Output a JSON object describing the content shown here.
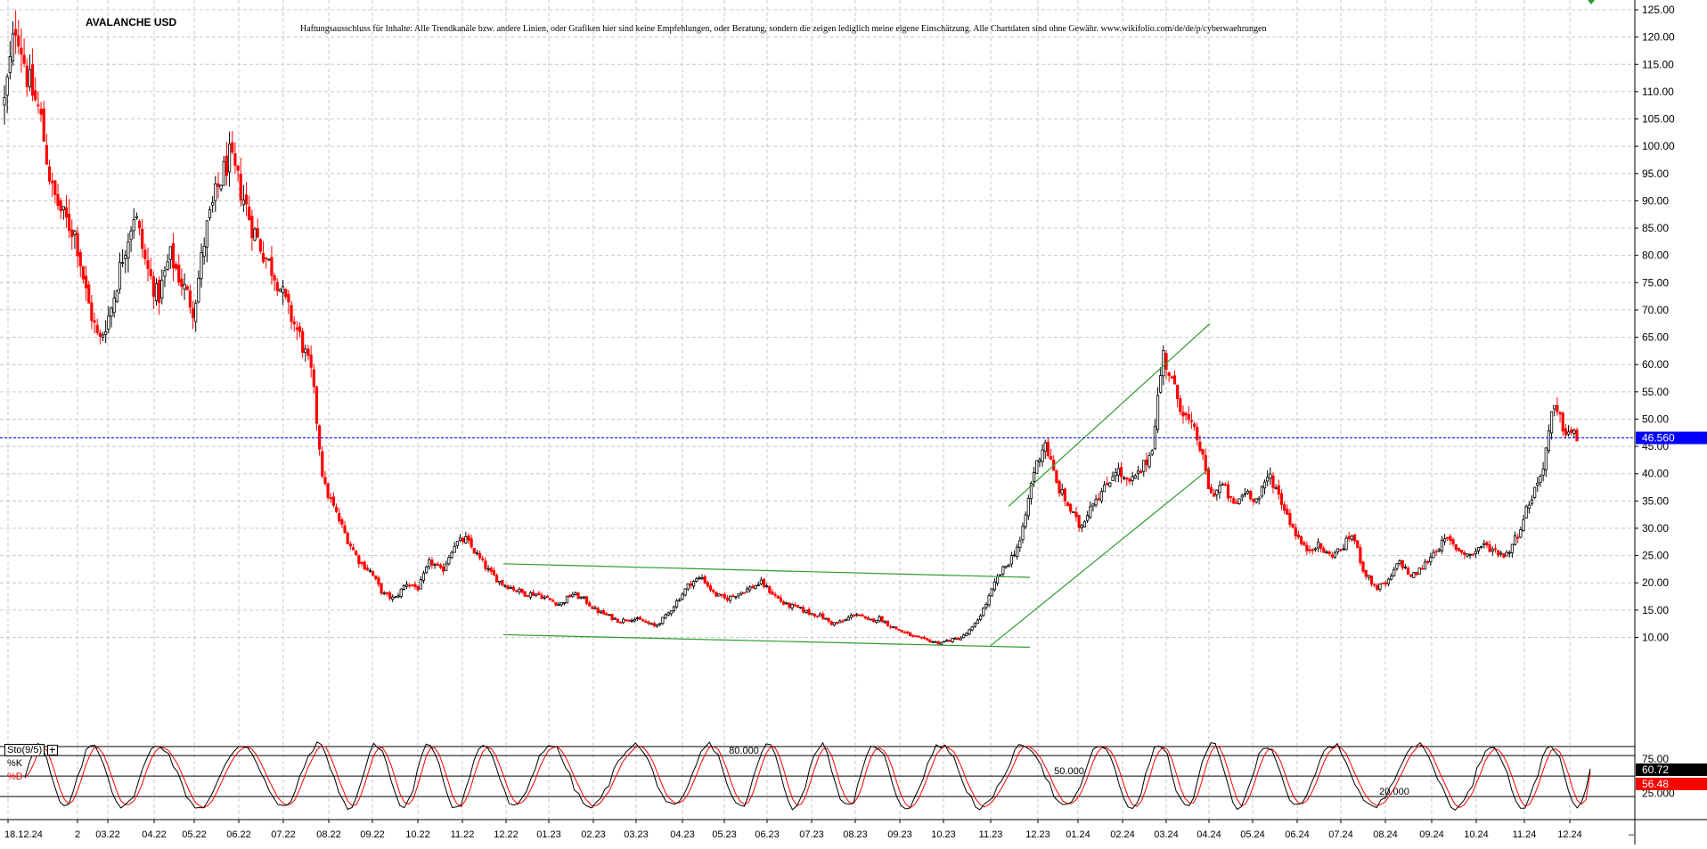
{
  "chart_data": [
    {
      "type": "candlestick",
      "title": "AVALANCHE USD",
      "annotation": "Haftungsausschluss für Inhalte: Alle Trendkanäle bzw. andere Linien, oder Grafiken hier sind keine Empfehlungen, oder Beratung, sondern die zeigen lediglich meine eigene Einschätzung. Alle Chartdaten sind ohne Gewähr.  www.wikifolio.com/de/de/p/cyberwaehrungen",
      "x_tick_labels": [
        "18.12.24",
        "2",
        "03.22",
        "04.22",
        "05.22",
        "06.22",
        "07.22",
        "08.22",
        "09.22",
        "10.22",
        "11.22",
        "12.22",
        "01.23",
        "02.23",
        "03.23",
        "04.23",
        "05.23",
        "06.23",
        "07.23",
        "08.23",
        "09.23",
        "10.23",
        "11.23",
        "12.23",
        "01.24",
        "02.24",
        "03.24",
        "04.24",
        "05.24",
        "06.24",
        "07.24",
        "08.24",
        "09.24",
        "10.24",
        "11.24",
        "12.24"
      ],
      "y_tick_labels": [
        "125.00",
        "120.00",
        "115.00",
        "110.00",
        "105.00",
        "100.00",
        "95.00",
        "90.00",
        "85.00",
        "80.00",
        "75.00",
        "70.00",
        "65.00",
        "60.00",
        "55.00",
        "50.00",
        "45.00",
        "40.00",
        "35.00",
        "30.00",
        "25.00",
        "20.00",
        "15.00",
        "10.00"
      ],
      "ylim": [
        6,
        126
      ],
      "grid": true,
      "price_path_anchors": [
        [
          0,
          108
        ],
        [
          1,
          123
        ],
        [
          2,
          112
        ],
        [
          3,
          106
        ],
        [
          4,
          92
        ],
        [
          5,
          87
        ],
        [
          6,
          84
        ],
        [
          7,
          72
        ],
        [
          8,
          64
        ],
        [
          9,
          70
        ],
        [
          10,
          80
        ],
        [
          11,
          88
        ],
        [
          12,
          78
        ],
        [
          13,
          72
        ],
        [
          14,
          80
        ],
        [
          15,
          75
        ],
        [
          16,
          70
        ],
        [
          17,
          84
        ],
        [
          18,
          92
        ],
        [
          19,
          98
        ],
        [
          20,
          92
        ],
        [
          21,
          85
        ],
        [
          22,
          80
        ],
        [
          23,
          76
        ],
        [
          24,
          70
        ],
        [
          25,
          65
        ],
        [
          26,
          58
        ],
        [
          27,
          38
        ],
        [
          28,
          33
        ],
        [
          29,
          28
        ],
        [
          30,
          24
        ],
        [
          31,
          22
        ],
        [
          32,
          18
        ],
        [
          33,
          17
        ],
        [
          34,
          20
        ],
        [
          35,
          19
        ],
        [
          36,
          24
        ],
        [
          37,
          22
        ],
        [
          38,
          27
        ],
        [
          39,
          28
        ],
        [
          40,
          25
        ],
        [
          41,
          22
        ],
        [
          42,
          20
        ],
        [
          43,
          19
        ],
        [
          44,
          18
        ],
        [
          45,
          18
        ],
        [
          46,
          17
        ],
        [
          47,
          16
        ],
        [
          48,
          18
        ],
        [
          49,
          17
        ],
        [
          50,
          15
        ],
        [
          51,
          14
        ],
        [
          52,
          13
        ],
        [
          53,
          13.5
        ],
        [
          54,
          13
        ],
        [
          55,
          12
        ],
        [
          56,
          14
        ],
        [
          57,
          17
        ],
        [
          58,
          20
        ],
        [
          59,
          21
        ],
        [
          60,
          18
        ],
        [
          61,
          17
        ],
        [
          62,
          18
        ],
        [
          63,
          19
        ],
        [
          64,
          20
        ],
        [
          65,
          18
        ],
        [
          66,
          16
        ],
        [
          67,
          15.5
        ],
        [
          68,
          14.5
        ],
        [
          69,
          14
        ],
        [
          70,
          12.5
        ],
        [
          71,
          13
        ],
        [
          72,
          14.5
        ],
        [
          73,
          13
        ],
        [
          74,
          13.5
        ],
        [
          75,
          12
        ],
        [
          76,
          11
        ],
        [
          77,
          10
        ],
        [
          78,
          9.5
        ],
        [
          79,
          9
        ],
        [
          80,
          9.5
        ],
        [
          81,
          10
        ],
        [
          82,
          12
        ],
        [
          83,
          16
        ],
        [
          84,
          21
        ],
        [
          85,
          24
        ],
        [
          86,
          28
        ],
        [
          87,
          40
        ],
        [
          88,
          46
        ],
        [
          89,
          38
        ],
        [
          90,
          34
        ],
        [
          91,
          30
        ],
        [
          92,
          35
        ],
        [
          93,
          37
        ],
        [
          94,
          41
        ],
        [
          95,
          38
        ],
        [
          96,
          40
        ],
        [
          97,
          44
        ],
        [
          98,
          62
        ],
        [
          99,
          55
        ],
        [
          100,
          50
        ],
        [
          101,
          46
        ],
        [
          102,
          36
        ],
        [
          103,
          38
        ],
        [
          104,
          34
        ],
        [
          105,
          37
        ],
        [
          106,
          35
        ],
        [
          107,
          40
        ],
        [
          108,
          35
        ],
        [
          109,
          30
        ],
        [
          110,
          26
        ],
        [
          111,
          27
        ],
        [
          112,
          25
        ],
        [
          113,
          26
        ],
        [
          114,
          29
        ],
        [
          115,
          22
        ],
        [
          116,
          19
        ],
        [
          117,
          20
        ],
        [
          118,
          24
        ],
        [
          119,
          21
        ],
        [
          120,
          23
        ],
        [
          121,
          26
        ],
        [
          122,
          28
        ],
        [
          123,
          26
        ],
        [
          124,
          25
        ],
        [
          125,
          27
        ],
        [
          126,
          26
        ],
        [
          127,
          25
        ],
        [
          128,
          29
        ],
        [
          129,
          35
        ],
        [
          130,
          40
        ],
        [
          131,
          52
        ],
        [
          132,
          48
        ],
        [
          133,
          46.56
        ]
      ],
      "price_path_anchor_max_index": 133,
      "current_price_label": "46.560",
      "current_price": 46.56,
      "trend_channels": [
        {
          "from": [
            "12.22",
            23.5
          ],
          "to": [
            "11.23",
            21
          ],
          "color": "#2e9b2e"
        },
        {
          "from": [
            "12.22",
            10.5
          ],
          "to": [
            "11.23",
            8.2
          ],
          "color": "#2e9b2e"
        },
        {
          "from": [
            "12.23",
            34
          ],
          "to": [
            "04.24",
            67.5
          ],
          "color": "#2e9b2e"
        },
        {
          "from": [
            "11.23",
            8.5
          ],
          "to": [
            "04.24",
            41
          ],
          "color": "#2e9b2e"
        }
      ]
    },
    {
      "type": "line",
      "indicator": "Sto(9/5)",
      "series": [
        {
          "name": "%K",
          "color": "#000000",
          "last_value_label": "60.72",
          "last_value": 60.72
        },
        {
          "name": "%D",
          "color": "#ff0000",
          "last_value_label": "56.48",
          "last_value": 56.48
        }
      ],
      "levels": [
        {
          "value": 80,
          "label": "80.000"
        },
        {
          "value": 50,
          "label": "50.000"
        },
        {
          "value": 20,
          "label": "20.000"
        }
      ],
      "y_tick_labels": [
        "75.00",
        "25.000"
      ],
      "ylim": [
        0,
        100
      ]
    }
  ],
  "colors": {
    "up_candle": "#000000",
    "down_candle": "#ff0000",
    "trend": "#2e9b2e",
    "price_line": "#0000ff",
    "grid": "#c8c8c8",
    "axis": "#000000",
    "top_marker": "#2e9b2e"
  }
}
